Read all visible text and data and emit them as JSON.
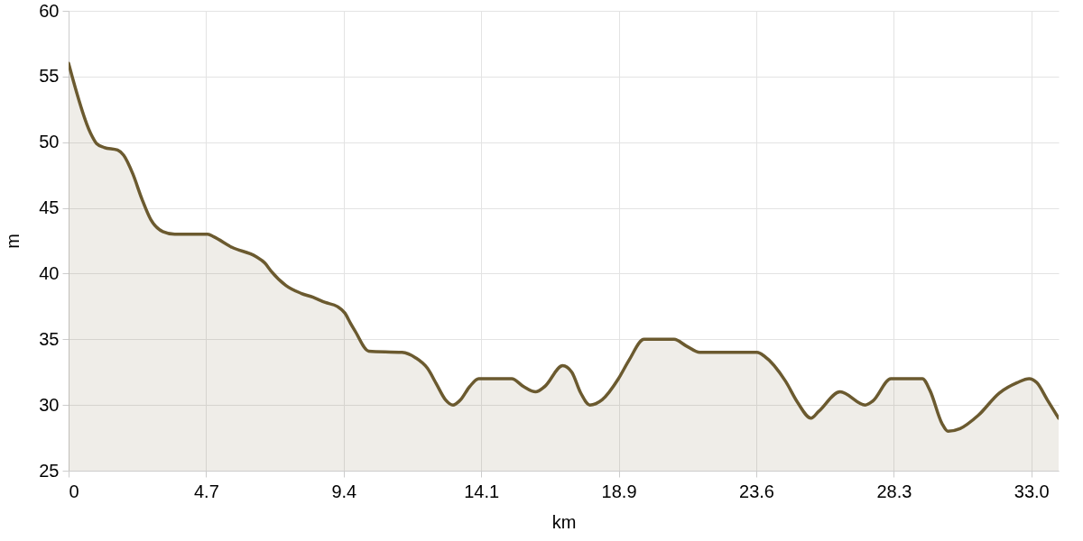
{
  "chart_data": {
    "type": "area",
    "xlabel": "km",
    "ylabel": "m",
    "x": [
      0,
      0.75,
      0.96,
      1.22,
      1.68,
      1.89,
      2.2,
      2.51,
      2.82,
      3.23,
      3.64,
      4.77,
      4.98,
      5.6,
      6.42,
      6.73,
      6.94,
      7.45,
      7.97,
      8.38,
      8.8,
      9.21,
      9.47,
      9.67,
      9.83,
      10.29,
      11.43,
      11.89,
      12.3,
      12.61,
      12.92,
      13.18,
      13.44,
      13.75,
      14.06,
      15.19,
      15.6,
      16.01,
      16.32,
      16.94,
      17.25,
      17.56,
      17.87,
      18.29,
      18.85,
      19.21,
      19.73,
      20.76,
      21.17,
      21.64,
      23.6,
      23.86,
      24.58,
      24.99,
      25.45,
      25.71,
      26.45,
      27.31,
      27.57,
      28.19,
      29.27,
      29.53,
      29.94,
      30.15,
      30.56,
      31.18,
      31.9,
      32.52,
      32.93,
      33.19,
      33.55,
      33.94
    ],
    "series": [
      {
        "color": "#6b5a2f",
        "values": [
          56,
          50.7,
          49.9,
          49.6,
          49.4,
          49.0,
          47.6,
          45.7,
          44.1,
          43.2,
          43.0,
          43.0,
          42.8,
          42.0,
          41.3,
          40.8,
          40.2,
          39.1,
          38.5,
          38.2,
          37.8,
          37.5,
          37.0,
          36.2,
          35.6,
          34.1,
          34.0,
          33.6,
          32.8,
          31.6,
          30.4,
          30.0,
          30.4,
          31.4,
          32.0,
          32.0,
          31.4,
          31.0,
          31.4,
          33.0,
          32.5,
          30.9,
          30.0,
          30.4,
          32.0,
          33.4,
          35.0,
          35.0,
          34.5,
          34.0,
          34.0,
          33.7,
          31.8,
          30.2,
          29.0,
          29.5,
          31.0,
          30.0,
          30.3,
          32.0,
          32.0,
          31.1,
          28.6,
          28.0,
          28.2,
          29.2,
          30.9,
          31.7,
          32.0,
          31.7,
          30.4,
          29.0
        ]
      }
    ],
    "xlim": [
      0,
      33.94
    ],
    "xticks": [
      0,
      {
        "value": 4.715,
        "label": "4.7"
      },
      {
        "value": 9.43,
        "label": "9.4"
      },
      {
        "value": 14.145,
        "label": "14.1"
      },
      {
        "value": 18.86,
        "label": "18.9"
      },
      {
        "value": 23.575,
        "label": "23.6"
      },
      {
        "value": 28.29,
        "label": "28.3"
      },
      {
        "value": 33.005,
        "label": "33.0"
      }
    ],
    "ylim": [
      25,
      60
    ],
    "yticks": [
      25,
      30,
      35,
      40,
      45,
      50,
      55,
      60
    ],
    "grid": true,
    "line_style": "solid"
  }
}
